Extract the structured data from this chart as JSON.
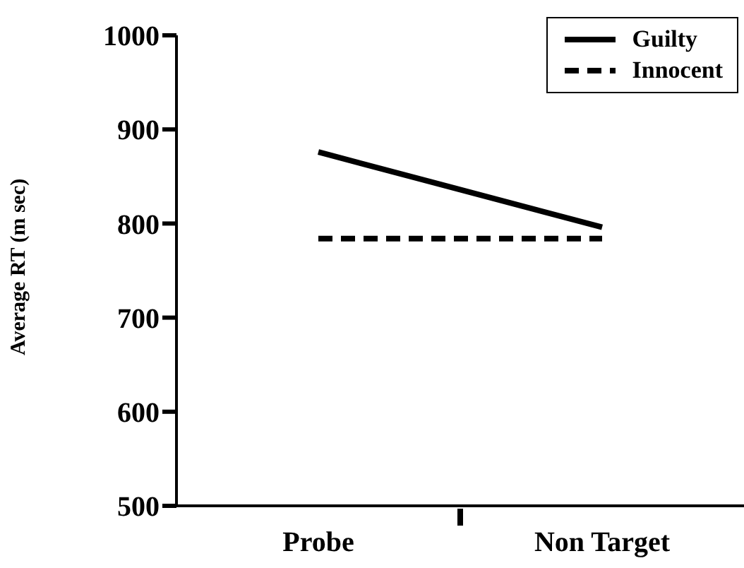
{
  "chart_data": {
    "type": "line",
    "ylabel": "Average RT (m sec)",
    "categories": [
      "Probe",
      "Non  Target"
    ],
    "series": [
      {
        "name": "Guilty",
        "color": "#000000",
        "values": [
          876,
          796
        ],
        "line_style": "solid"
      },
      {
        "name": "Innocent",
        "color": "#000000",
        "values": [
          784,
          784
        ],
        "line_style": "dashed"
      }
    ],
    "ylim": [
      500,
      1000
    ],
    "yticks": [
      500,
      600,
      700,
      800,
      900,
      1000
    ],
    "grid": false,
    "legend": "top right",
    "marker": "none"
  }
}
